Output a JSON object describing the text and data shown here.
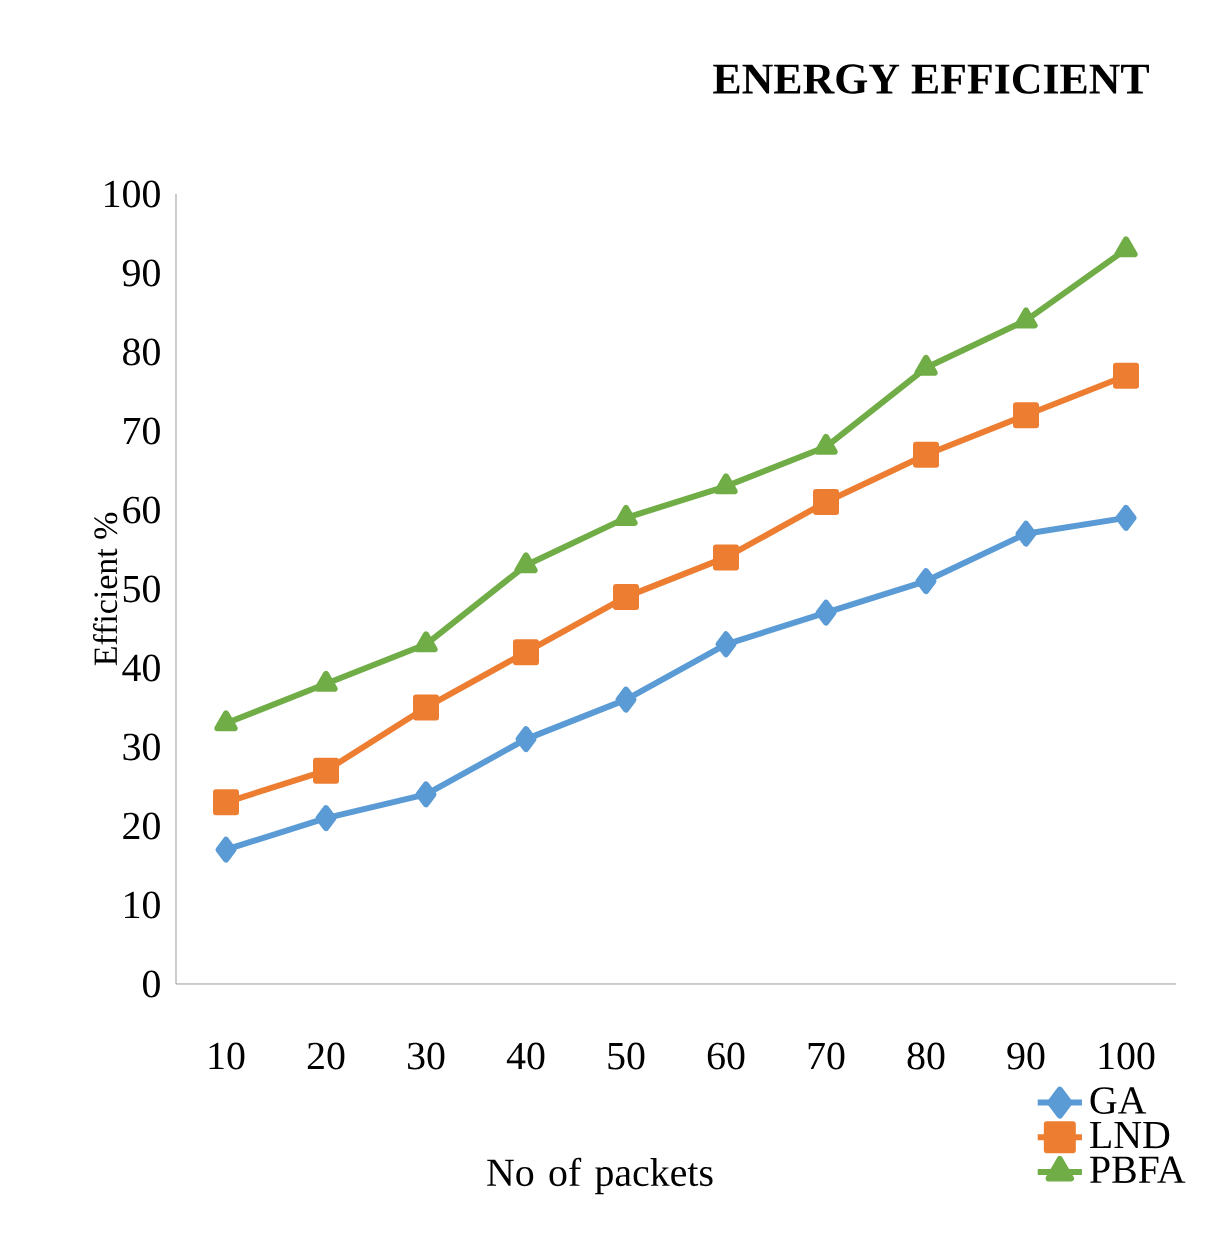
{
  "chart_data": {
    "type": "line",
    "title": "ENERGY EFFICIENT",
    "xlabel": "No of packets",
    "ylabel": "Efficient   %",
    "categories": [
      "10",
      "20",
      "30",
      "40",
      "50",
      "60",
      "70",
      "80",
      "90",
      "100"
    ],
    "series": [
      {
        "name": "GA",
        "color": "#5b9bd5",
        "marker": "diamond",
        "values": [
          17,
          21,
          24,
          31,
          36,
          43,
          47,
          51,
          57,
          59
        ]
      },
      {
        "name": "LND",
        "color": "#ed7d31",
        "marker": "square",
        "values": [
          23,
          27,
          35,
          42,
          49,
          54,
          61,
          67,
          72,
          77
        ]
      },
      {
        "name": "PBFA",
        "color": "#70ad47",
        "marker": "triangle",
        "values": [
          33,
          38,
          43,
          53,
          59,
          63,
          68,
          78,
          84,
          93
        ]
      }
    ],
    "ylim": [
      0,
      100
    ],
    "yticks": [
      0,
      10,
      20,
      30,
      40,
      50,
      60,
      70,
      80,
      90,
      100
    ],
    "legend": "bottom right"
  }
}
